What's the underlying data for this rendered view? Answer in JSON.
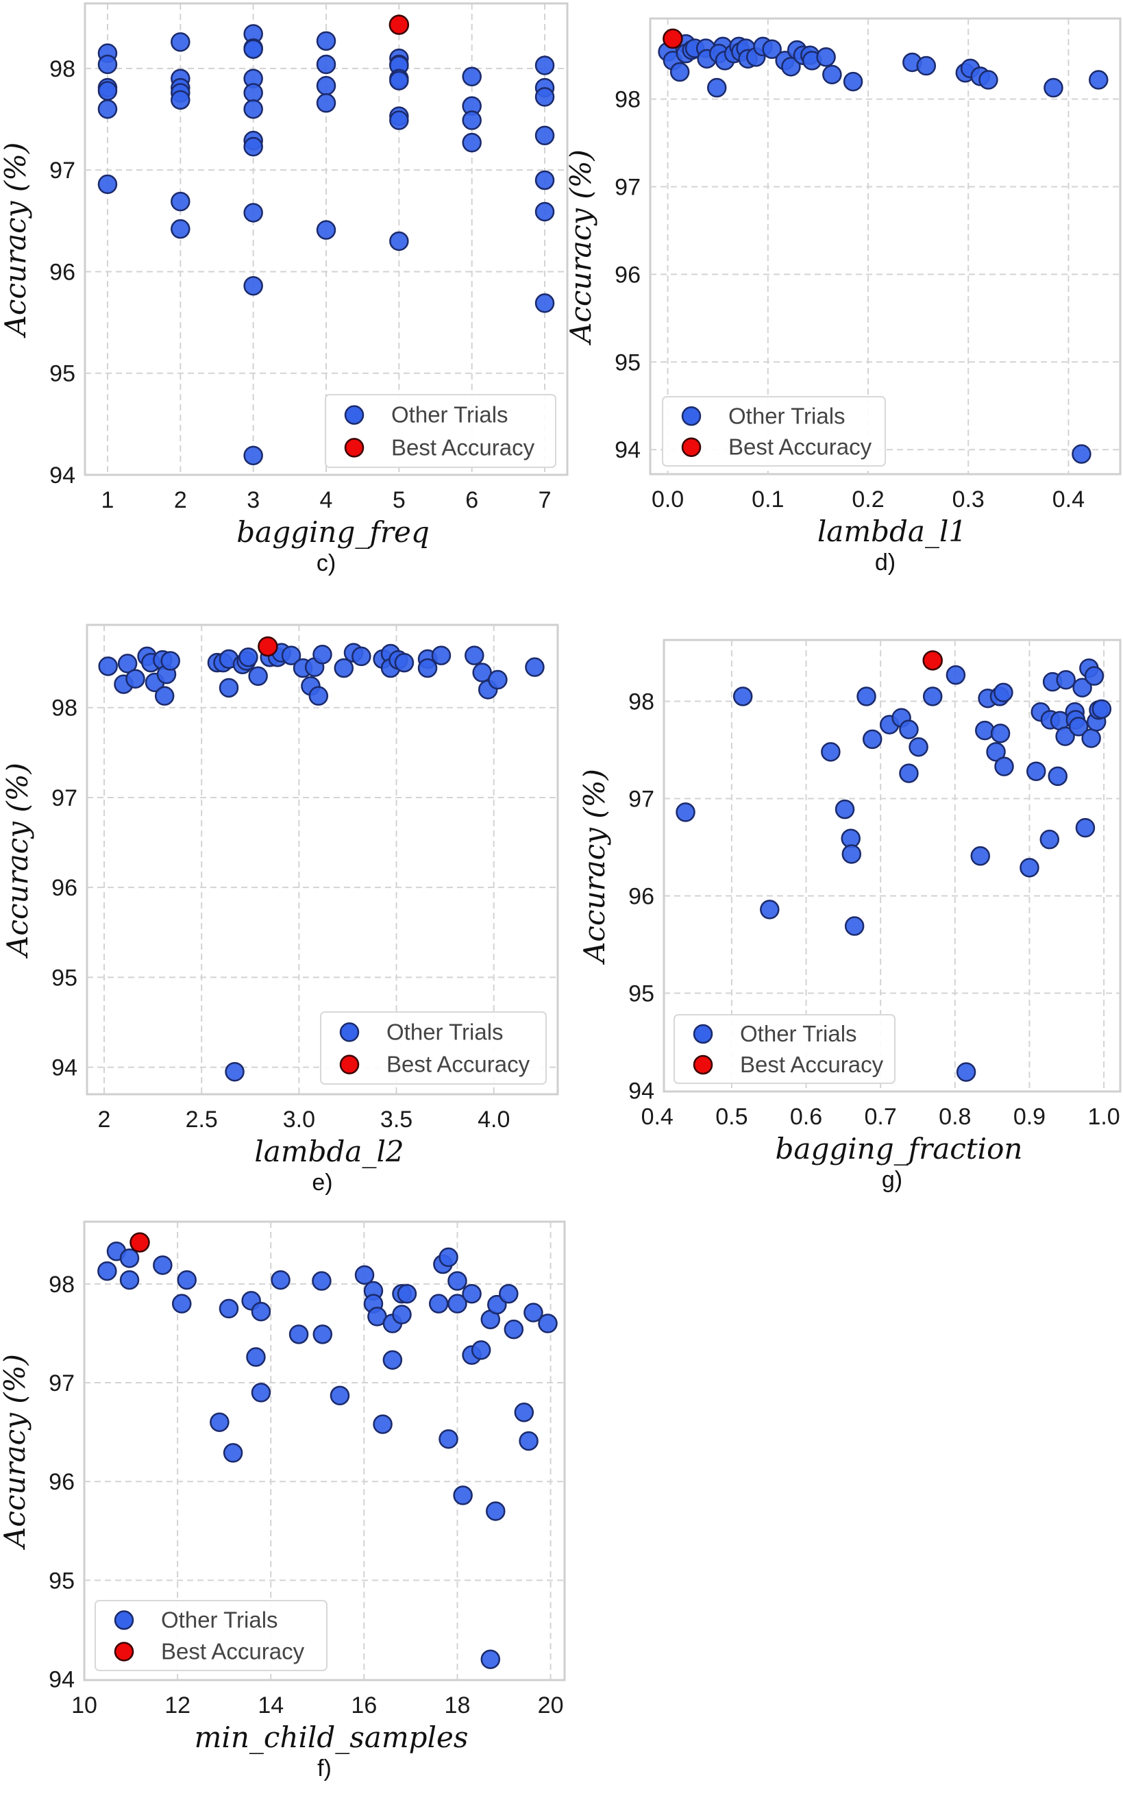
{
  "colors": {
    "other_trials": "#3563e9",
    "best_accuracy": "#ee0a0a",
    "marker_edge": "#1b2a6b",
    "grid": "#d3d3d3",
    "frame": "#cfcfcf"
  },
  "legend": {
    "other_label": "Other Trials",
    "best_label": "Best Accuracy"
  },
  "chart_data": [
    {
      "type": "scatter",
      "caption": "c)",
      "xlabel": "bagging_freq",
      "ylabel": "Accuracy (%)",
      "xlim": [
        0.69,
        7.31
      ],
      "ylim": [
        94.0,
        98.64
      ],
      "grid": true,
      "legend_position": "bottom-right",
      "x_ticks": [
        1,
        2,
        3,
        4,
        5,
        6,
        7
      ],
      "x_tick_labels": [
        "1",
        "2",
        "3",
        "4",
        "5",
        "6",
        "7"
      ],
      "y_ticks": [
        94,
        95,
        96,
        97,
        98
      ],
      "y_tick_labels": [
        "94",
        "95",
        "96",
        "97",
        "98"
      ],
      "other": [
        [
          1,
          98.15
        ],
        [
          1,
          98.04
        ],
        [
          1,
          97.81
        ],
        [
          1,
          97.78
        ],
        [
          1,
          97.6
        ],
        [
          1,
          96.86
        ],
        [
          2,
          98.26
        ],
        [
          2,
          97.9
        ],
        [
          2,
          97.81
        ],
        [
          2,
          97.76
        ],
        [
          2,
          97.69
        ],
        [
          2,
          96.69
        ],
        [
          2,
          96.42
        ],
        [
          3,
          98.34
        ],
        [
          3,
          98.2
        ],
        [
          3,
          98.19
        ],
        [
          3,
          97.9
        ],
        [
          3,
          97.76
        ],
        [
          3,
          97.6
        ],
        [
          3,
          97.29
        ],
        [
          3,
          97.23
        ],
        [
          3,
          96.58
        ],
        [
          3,
          95.86
        ],
        [
          3,
          94.19
        ],
        [
          4,
          98.27
        ],
        [
          4,
          98.04
        ],
        [
          4,
          97.83
        ],
        [
          4,
          97.66
        ],
        [
          4,
          96.41
        ],
        [
          5,
          98.1
        ],
        [
          5,
          98.04
        ],
        [
          5,
          98.03
        ],
        [
          5,
          97.9
        ],
        [
          5,
          97.88
        ],
        [
          5,
          97.53
        ],
        [
          5,
          97.49
        ],
        [
          5,
          96.3
        ],
        [
          6,
          97.92
        ],
        [
          6,
          97.63
        ],
        [
          6,
          97.49
        ],
        [
          6,
          97.27
        ],
        [
          7,
          98.03
        ],
        [
          7,
          97.81
        ],
        [
          7,
          97.72
        ],
        [
          7,
          97.34
        ],
        [
          7,
          96.9
        ],
        [
          7,
          96.59
        ],
        [
          7,
          95.69
        ]
      ],
      "best": [
        [
          5,
          98.43
        ]
      ]
    },
    {
      "type": "scatter",
      "caption": "d)",
      "xlabel": "lambda_l1",
      "ylabel": "Accuracy (%)",
      "xlim": [
        -0.0175,
        0.4517
      ],
      "ylim": [
        93.72,
        98.92
      ],
      "grid": true,
      "legend_position": "bottom-left",
      "x_ticks": [
        0,
        0.1,
        0.2,
        0.3,
        0.4
      ],
      "x_tick_labels": [
        "0.0",
        "0.1",
        "0.2",
        "0.3",
        "0.4"
      ],
      "y_ticks": [
        94,
        95,
        96,
        97,
        98
      ],
      "y_tick_labels": [
        "94",
        "95",
        "96",
        "97",
        "98"
      ],
      "other": [
        [
          0,
          98.54
        ],
        [
          0.005,
          98.44
        ],
        [
          0.012,
          98.31
        ],
        [
          0.018,
          98.63
        ],
        [
          0.018,
          98.52
        ],
        [
          0.024,
          98.56
        ],
        [
          0.027,
          98.58
        ],
        [
          0.038,
          98.58
        ],
        [
          0.039,
          98.46
        ],
        [
          0.049,
          98.13
        ],
        [
          0.055,
          98.6
        ],
        [
          0.051,
          98.52
        ],
        [
          0.057,
          98.44
        ],
        [
          0.066,
          98.52
        ],
        [
          0.071,
          98.6
        ],
        [
          0.073,
          98.54
        ],
        [
          0.078,
          98.58
        ],
        [
          0.08,
          98.46
        ],
        [
          0.088,
          98.48
        ],
        [
          0.095,
          98.6
        ],
        [
          0.104,
          98.57
        ],
        [
          0.117,
          98.44
        ],
        [
          0.123,
          98.37
        ],
        [
          0.129,
          98.56
        ],
        [
          0.135,
          98.5
        ],
        [
          0.142,
          98.5
        ],
        [
          0.144,
          98.44
        ],
        [
          0.158,
          98.48
        ],
        [
          0.164,
          98.28
        ],
        [
          0.185,
          98.2
        ],
        [
          0.244,
          98.42
        ],
        [
          0.258,
          98.38
        ],
        [
          0.297,
          98.3
        ],
        [
          0.302,
          98.35
        ],
        [
          0.312,
          98.26
        ],
        [
          0.32,
          98.22
        ],
        [
          0.385,
          98.13
        ],
        [
          0.43,
          98.22
        ],
        [
          0.413,
          93.95
        ]
      ],
      "best": [
        [
          0.005,
          98.69
        ]
      ]
    },
    {
      "type": "scatter",
      "caption": "e)",
      "xlabel": "lambda_l2",
      "ylabel": "Accuracy (%)",
      "xlim": [
        1.912,
        4.328
      ],
      "ylim": [
        93.7,
        98.92
      ],
      "grid": true,
      "legend_position": "bottom-right",
      "x_ticks": [
        2,
        2.5,
        3,
        3.5,
        4
      ],
      "x_tick_labels": [
        "2",
        "2.5",
        "3.0",
        "3.5",
        "4.0"
      ],
      "y_ticks": [
        94,
        95,
        96,
        97,
        98
      ],
      "y_tick_labels": [
        "94",
        "95",
        "96",
        "97",
        "98"
      ],
      "other": [
        [
          2.02,
          98.46
        ],
        [
          2.1,
          98.26
        ],
        [
          2.12,
          98.49
        ],
        [
          2.16,
          98.32
        ],
        [
          2.22,
          98.57
        ],
        [
          2.24,
          98.5
        ],
        [
          2.26,
          98.28
        ],
        [
          2.3,
          98.53
        ],
        [
          2.31,
          98.13
        ],
        [
          2.32,
          98.37
        ],
        [
          2.34,
          98.52
        ],
        [
          2.58,
          98.5
        ],
        [
          2.61,
          98.5
        ],
        [
          2.64,
          98.54
        ],
        [
          2.64,
          98.22
        ],
        [
          2.71,
          98.48
        ],
        [
          2.73,
          98.52
        ],
        [
          2.74,
          98.56
        ],
        [
          2.79,
          98.35
        ],
        [
          2.85,
          98.56
        ],
        [
          2.89,
          98.56
        ],
        [
          2.91,
          98.61
        ],
        [
          2.96,
          98.58
        ],
        [
          3.02,
          98.44
        ],
        [
          3.06,
          98.24
        ],
        [
          3.08,
          98.45
        ],
        [
          3.1,
          98.13
        ],
        [
          3.12,
          98.59
        ],
        [
          3.23,
          98.44
        ],
        [
          3.28,
          98.61
        ],
        [
          3.32,
          98.57
        ],
        [
          3.43,
          98.54
        ],
        [
          3.47,
          98.6
        ],
        [
          3.47,
          98.44
        ],
        [
          3.51,
          98.53
        ],
        [
          3.54,
          98.5
        ],
        [
          3.66,
          98.54
        ],
        [
          3.66,
          98.44
        ],
        [
          3.73,
          98.58
        ],
        [
          3.9,
          98.58
        ],
        [
          3.94,
          98.39
        ],
        [
          3.97,
          98.2
        ],
        [
          4.02,
          98.31
        ],
        [
          4.21,
          98.45
        ],
        [
          2.67,
          93.95
        ]
      ],
      "best": [
        [
          2.84,
          98.68
        ]
      ]
    },
    {
      "type": "scatter",
      "caption": "g)",
      "xlabel": "bagging_fraction",
      "ylabel": "Accuracy (%)",
      "xlim": [
        0.409,
        1.022
      ],
      "ylim": [
        93.99,
        98.63
      ],
      "grid": true,
      "legend_position": "bottom-left",
      "x_ticks": [
        0.4,
        0.5,
        0.6,
        0.7,
        0.8,
        0.9,
        1.0
      ],
      "x_tick_labels": [
        "0.4",
        "0.5",
        "0.6",
        "0.7",
        "0.8",
        "0.9",
        "1.0"
      ],
      "y_ticks": [
        94,
        95,
        96,
        97,
        98
      ],
      "y_tick_labels": [
        "94",
        "95",
        "96",
        "97",
        "98"
      ],
      "other": [
        [
          0.438,
          96.86
        ],
        [
          0.515,
          98.05
        ],
        [
          0.551,
          95.86
        ],
        [
          0.633,
          97.48
        ],
        [
          0.652,
          96.89
        ],
        [
          0.66,
          96.59
        ],
        [
          0.661,
          96.43
        ],
        [
          0.665,
          95.69
        ],
        [
          0.681,
          98.05
        ],
        [
          0.689,
          97.61
        ],
        [
          0.712,
          97.76
        ],
        [
          0.728,
          97.83
        ],
        [
          0.738,
          97.71
        ],
        [
          0.738,
          97.26
        ],
        [
          0.751,
          97.53
        ],
        [
          0.77,
          98.05
        ],
        [
          0.801,
          98.27
        ],
        [
          0.815,
          94.19
        ],
        [
          0.834,
          96.41
        ],
        [
          0.84,
          97.7
        ],
        [
          0.844,
          98.03
        ],
        [
          0.855,
          97.48
        ],
        [
          0.86,
          98.05
        ],
        [
          0.861,
          97.67
        ],
        [
          0.865,
          98.09
        ],
        [
          0.866,
          97.33
        ],
        [
          0.9,
          96.29
        ],
        [
          0.909,
          97.28
        ],
        [
          0.915,
          97.89
        ],
        [
          0.927,
          96.58
        ],
        [
          0.928,
          97.81
        ],
        [
          0.931,
          98.2
        ],
        [
          0.938,
          97.23
        ],
        [
          0.941,
          97.8
        ],
        [
          0.948,
          97.64
        ],
        [
          0.949,
          98.22
        ],
        [
          0.961,
          97.89
        ],
        [
          0.962,
          97.81
        ],
        [
          0.966,
          97.74
        ],
        [
          0.971,
          98.14
        ],
        [
          0.975,
          96.7
        ],
        [
          0.98,
          98.34
        ],
        [
          0.983,
          97.62
        ],
        [
          0.987,
          98.26
        ],
        [
          0.99,
          97.79
        ],
        [
          0.993,
          97.91
        ],
        [
          0.997,
          97.92
        ]
      ],
      "best": [
        [
          0.77,
          98.42
        ]
      ]
    },
    {
      "type": "scatter",
      "caption": "f)",
      "xlabel": "min_child_samples",
      "ylabel": "Accuracy (%)",
      "xlim": [
        10.0,
        20.3
      ],
      "ylim": [
        93.99,
        98.63
      ],
      "grid": true,
      "legend_position": "bottom-left",
      "x_ticks": [
        10,
        12,
        14,
        16,
        18,
        20
      ],
      "x_tick_labels": [
        "10",
        "12",
        "14",
        "16",
        "18",
        "20"
      ],
      "y_ticks": [
        94,
        95,
        96,
        97,
        98
      ],
      "y_tick_labels": [
        "94",
        "95",
        "96",
        "97",
        "98"
      ],
      "other": [
        [
          10.49,
          98.13
        ],
        [
          10.69,
          98.33
        ],
        [
          10.97,
          98.26
        ],
        [
          10.97,
          98.04
        ],
        [
          11.68,
          98.19
        ],
        [
          12.09,
          97.8
        ],
        [
          12.2,
          98.04
        ],
        [
          12.9,
          96.6
        ],
        [
          13.1,
          97.75
        ],
        [
          13.19,
          96.29
        ],
        [
          13.58,
          97.83
        ],
        [
          13.68,
          97.26
        ],
        [
          13.79,
          97.72
        ],
        [
          13.79,
          96.9
        ],
        [
          14.21,
          98.04
        ],
        [
          14.6,
          97.49
        ],
        [
          15.09,
          98.03
        ],
        [
          15.11,
          97.49
        ],
        [
          15.48,
          96.87
        ],
        [
          16.01,
          98.09
        ],
        [
          16.2,
          97.93
        ],
        [
          16.2,
          97.8
        ],
        [
          16.28,
          97.67
        ],
        [
          16.4,
          96.58
        ],
        [
          16.61,
          97.6
        ],
        [
          16.61,
          97.23
        ],
        [
          16.81,
          97.69
        ],
        [
          16.81,
          97.9
        ],
        [
          16.92,
          97.9
        ],
        [
          17.6,
          97.8
        ],
        [
          17.69,
          98.2
        ],
        [
          17.81,
          98.27
        ],
        [
          17.81,
          96.43
        ],
        [
          18.0,
          98.03
        ],
        [
          18.0,
          97.8
        ],
        [
          18.12,
          95.86
        ],
        [
          18.31,
          97.9
        ],
        [
          18.31,
          97.28
        ],
        [
          18.51,
          97.33
        ],
        [
          18.71,
          97.64
        ],
        [
          18.71,
          94.2
        ],
        [
          18.82,
          95.7
        ],
        [
          18.85,
          97.79
        ],
        [
          19.1,
          97.9
        ],
        [
          19.21,
          97.54
        ],
        [
          19.43,
          96.7
        ],
        [
          19.53,
          96.41
        ],
        [
          19.63,
          97.71
        ],
        [
          19.94,
          97.6
        ]
      ],
      "best": [
        [
          11.19,
          98.42
        ]
      ]
    }
  ]
}
